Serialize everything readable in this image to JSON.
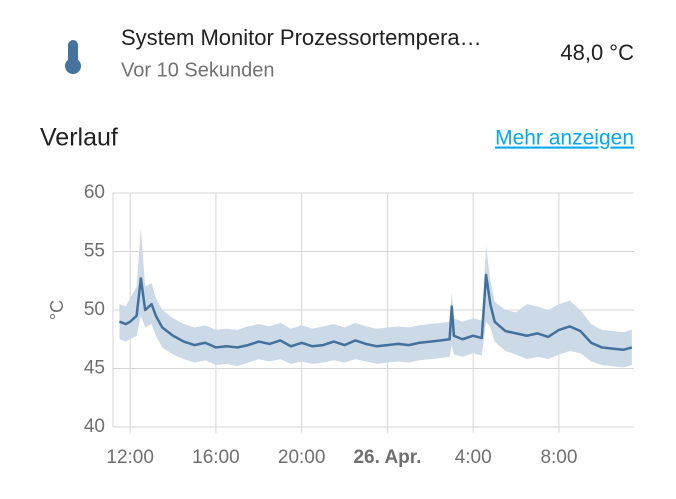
{
  "entity": {
    "name": "System Monitor Prozessortempera…",
    "last_changed": "Vor 10 Sekunden",
    "state": "48,0 °C"
  },
  "history": {
    "title": "Verlauf",
    "link": "Mehr anzeigen"
  },
  "chart_data": {
    "type": "line",
    "ylabel": "°C",
    "x": [
      11.5,
      11.8,
      12,
      12.3,
      12.5,
      12.7,
      13,
      13.2,
      13.5,
      14,
      14.5,
      15,
      15.5,
      16,
      16.5,
      17,
      17.5,
      18,
      18.5,
      19,
      19.5,
      20,
      20.5,
      21,
      21.5,
      22,
      22.5,
      23,
      23.5,
      24,
      24.5,
      25,
      25.5,
      26,
      26.5,
      26.9,
      27,
      27.1,
      27.5,
      28,
      28.4,
      28.6,
      28.8,
      29,
      29.5,
      30,
      30.5,
      31,
      31.5,
      32,
      32.5,
      33,
      33.5,
      34,
      34.5,
      35,
      35.4
    ],
    "series": [
      {
        "color": "#41719c",
        "values": [
          49.0,
          48.8,
          49.0,
          49.5,
          52.7,
          50.0,
          50.5,
          49.5,
          48.5,
          47.8,
          47.3,
          47.0,
          47.2,
          46.8,
          46.9,
          46.8,
          47.0,
          47.3,
          47.1,
          47.4,
          46.9,
          47.2,
          46.9,
          47.0,
          47.3,
          47.0,
          47.4,
          47.1,
          46.9,
          47.0,
          47.1,
          47.0,
          47.2,
          47.3,
          47.4,
          47.5,
          50.3,
          47.8,
          47.5,
          47.8,
          47.6,
          53.0,
          50.5,
          49.0,
          48.2,
          48.0,
          47.8,
          48.0,
          47.7,
          48.3,
          48.6,
          48.2,
          47.2,
          46.8,
          46.7,
          46.6,
          46.8
        ]
      }
    ],
    "band": {
      "color": "#ccd9e6",
      "low": [
        47.5,
        47.3,
        47.5,
        47.8,
        49.5,
        48.5,
        48.8,
        47.8,
        46.8,
        46.2,
        45.8,
        45.5,
        45.7,
        45.3,
        45.4,
        45.2,
        45.5,
        45.8,
        45.6,
        45.8,
        45.4,
        45.6,
        45.4,
        45.5,
        45.7,
        45.5,
        45.8,
        45.6,
        45.4,
        45.5,
        45.6,
        45.5,
        45.7,
        45.8,
        45.9,
        46.0,
        47.0,
        46.2,
        46.0,
        46.3,
        46.1,
        49.0,
        48.5,
        47.3,
        46.5,
        46.2,
        45.8,
        46.0,
        45.8,
        46.2,
        46.5,
        46.3,
        45.6,
        45.3,
        45.2,
        45.1,
        45.3
      ],
      "high": [
        50.5,
        50.3,
        51.0,
        52.0,
        57.0,
        52.0,
        52.3,
        51.0,
        50.0,
        49.3,
        48.8,
        48.5,
        48.7,
        48.3,
        48.4,
        48.3,
        48.6,
        48.8,
        48.6,
        48.9,
        48.4,
        48.7,
        48.4,
        48.6,
        48.8,
        48.5,
        48.9,
        48.6,
        48.4,
        48.5,
        48.6,
        48.5,
        48.7,
        48.8,
        48.9,
        49.0,
        51.5,
        49.3,
        49.0,
        49.3,
        49.1,
        55.5,
        52.5,
        50.7,
        50.0,
        49.8,
        50.5,
        50.3,
        50.0,
        50.5,
        50.8,
        50.0,
        48.8,
        48.3,
        48.2,
        48.1,
        48.3
      ]
    },
    "xlim": [
      11.2,
      35.5
    ],
    "xticks": [
      {
        "value": 12,
        "label": "12:00"
      },
      {
        "value": 16,
        "label": "16:00"
      },
      {
        "value": 20,
        "label": "20:00"
      },
      {
        "value": 24,
        "label": "26. Apr."
      },
      {
        "value": 28,
        "label": "4:00"
      },
      {
        "value": 32,
        "label": "8:00"
      }
    ],
    "ylim": [
      40,
      60
    ],
    "yticks": [
      40,
      45,
      50,
      55,
      60
    ],
    "grid": true
  }
}
